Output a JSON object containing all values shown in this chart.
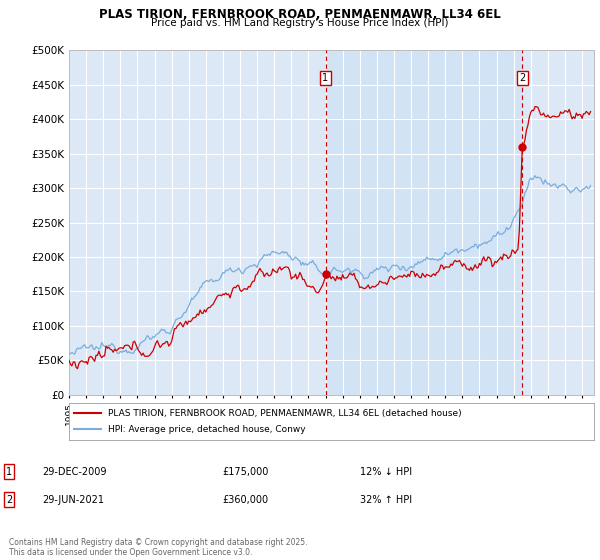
{
  "title": "PLAS TIRION, FERNBROOK ROAD, PENMAENMAWR, LL34 6EL",
  "subtitle": "Price paid vs. HM Land Registry's House Price Index (HPI)",
  "ylim": [
    0,
    500000
  ],
  "yticks": [
    0,
    50000,
    100000,
    150000,
    200000,
    250000,
    300000,
    350000,
    400000,
    450000,
    500000
  ],
  "ytick_labels": [
    "£0",
    "£50K",
    "£100K",
    "£150K",
    "£200K",
    "£250K",
    "£300K",
    "£350K",
    "£400K",
    "£450K",
    "£500K"
  ],
  "xlim_start": 1995.0,
  "xlim_end": 2025.7,
  "background_color": "#ffffff",
  "plot_bg_color": "#dce8f5",
  "grid_color": "#ffffff",
  "legend_entry1": "PLAS TIRION, FERNBROOK ROAD, PENMAENMAWR, LL34 6EL (detached house)",
  "legend_entry2": "HPI: Average price, detached house, Conwy",
  "line1_color": "#cc0000",
  "line2_color": "#7aaddd",
  "marker1_date": 2010.0,
  "marker1_price": 175000,
  "marker1_label": "1",
  "marker1_text": "29-DEC-2009",
  "marker1_price_text": "£175,000",
  "marker1_hpi_text": "12% ↓ HPI",
  "marker2_date": 2021.5,
  "marker2_price": 360000,
  "marker2_label": "2",
  "marker2_text": "29-JUN-2021",
  "marker2_price_text": "£360,000",
  "marker2_hpi_text": "32% ↑ HPI",
  "shade_color": "#c8dff5",
  "footer": "Contains HM Land Registry data © Crown copyright and database right 2025.\nThis data is licensed under the Open Government Licence v3.0."
}
